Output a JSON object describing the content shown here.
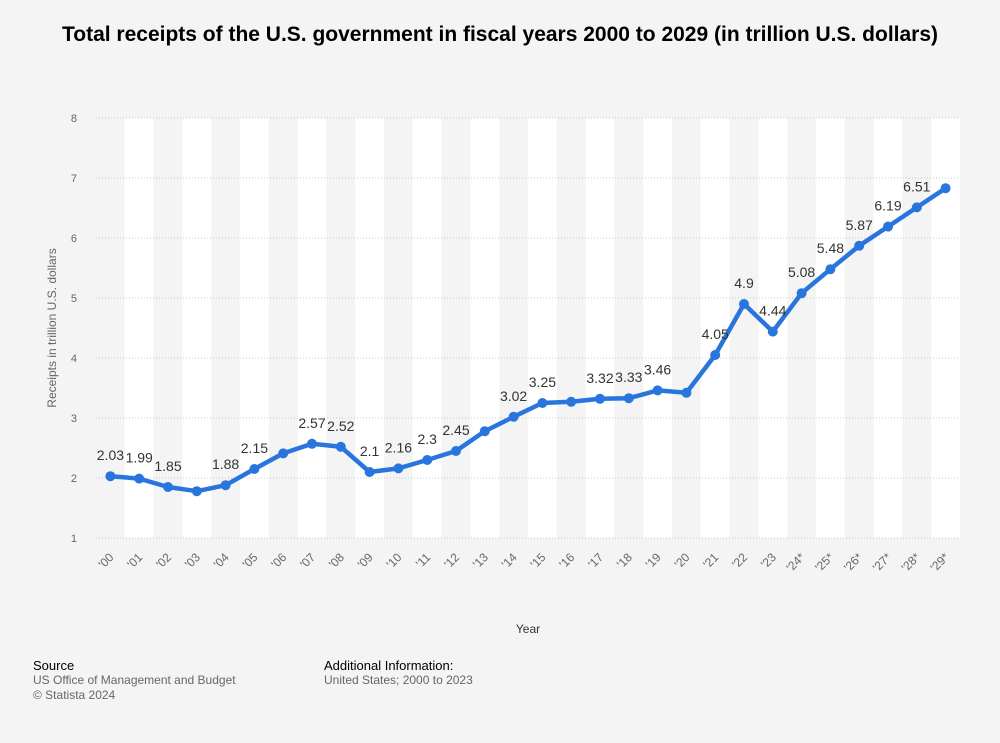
{
  "chart_data": {
    "type": "line",
    "title": "Total receipts of the U.S. government in fiscal years 2000 to 2029 (in trillion U.S. dollars)",
    "xlabel": "Year",
    "ylabel": "Receipts in trillion U.S. dollars",
    "ylim": [
      1,
      8
    ],
    "yticks": [
      "1",
      "2",
      "3",
      "4",
      "5",
      "6",
      "7",
      "8"
    ],
    "grid": true,
    "categories": [
      "'00",
      "'01",
      "'02",
      "'03",
      "'04",
      "'05",
      "'06",
      "'07",
      "'08",
      "'09",
      "'10",
      "'11",
      "'12",
      "'13",
      "'14",
      "'15",
      "'16",
      "'17",
      "'18",
      "'19",
      "'20",
      "'21",
      "'22",
      "'23",
      "'24*",
      "'25*",
      "'26*",
      "'27*",
      "'28*",
      "'29*"
    ],
    "values": [
      2.03,
      1.99,
      1.85,
      1.78,
      1.88,
      2.15,
      2.41,
      2.57,
      2.52,
      2.1,
      2.16,
      2.3,
      2.45,
      2.78,
      3.02,
      3.25,
      3.27,
      3.32,
      3.33,
      3.46,
      3.42,
      4.05,
      4.9,
      4.44,
      5.08,
      5.48,
      5.87,
      6.19,
      6.51,
      6.83
    ],
    "data_labels": [
      "2.03",
      "1.99",
      "1.85",
      "",
      "1.88",
      "2.15",
      "",
      "2.57",
      "2.52",
      "2.1",
      "2.16",
      "2.3",
      "2.45",
      "",
      "3.02",
      "3.25",
      "",
      "3.32",
      "3.33",
      "3.46",
      "",
      "4.05",
      "4.9",
      "4.44",
      "5.08",
      "5.48",
      "5.87",
      "6.19",
      "6.51",
      ""
    ],
    "line_color": "#2876dd"
  },
  "footer": {
    "source_heading": "Source",
    "source_line1": "US Office of Management and Budget",
    "source_line2": "© Statista 2024",
    "info_heading": "Additional Information:",
    "info_line1": "United States; 2000 to 2023"
  }
}
